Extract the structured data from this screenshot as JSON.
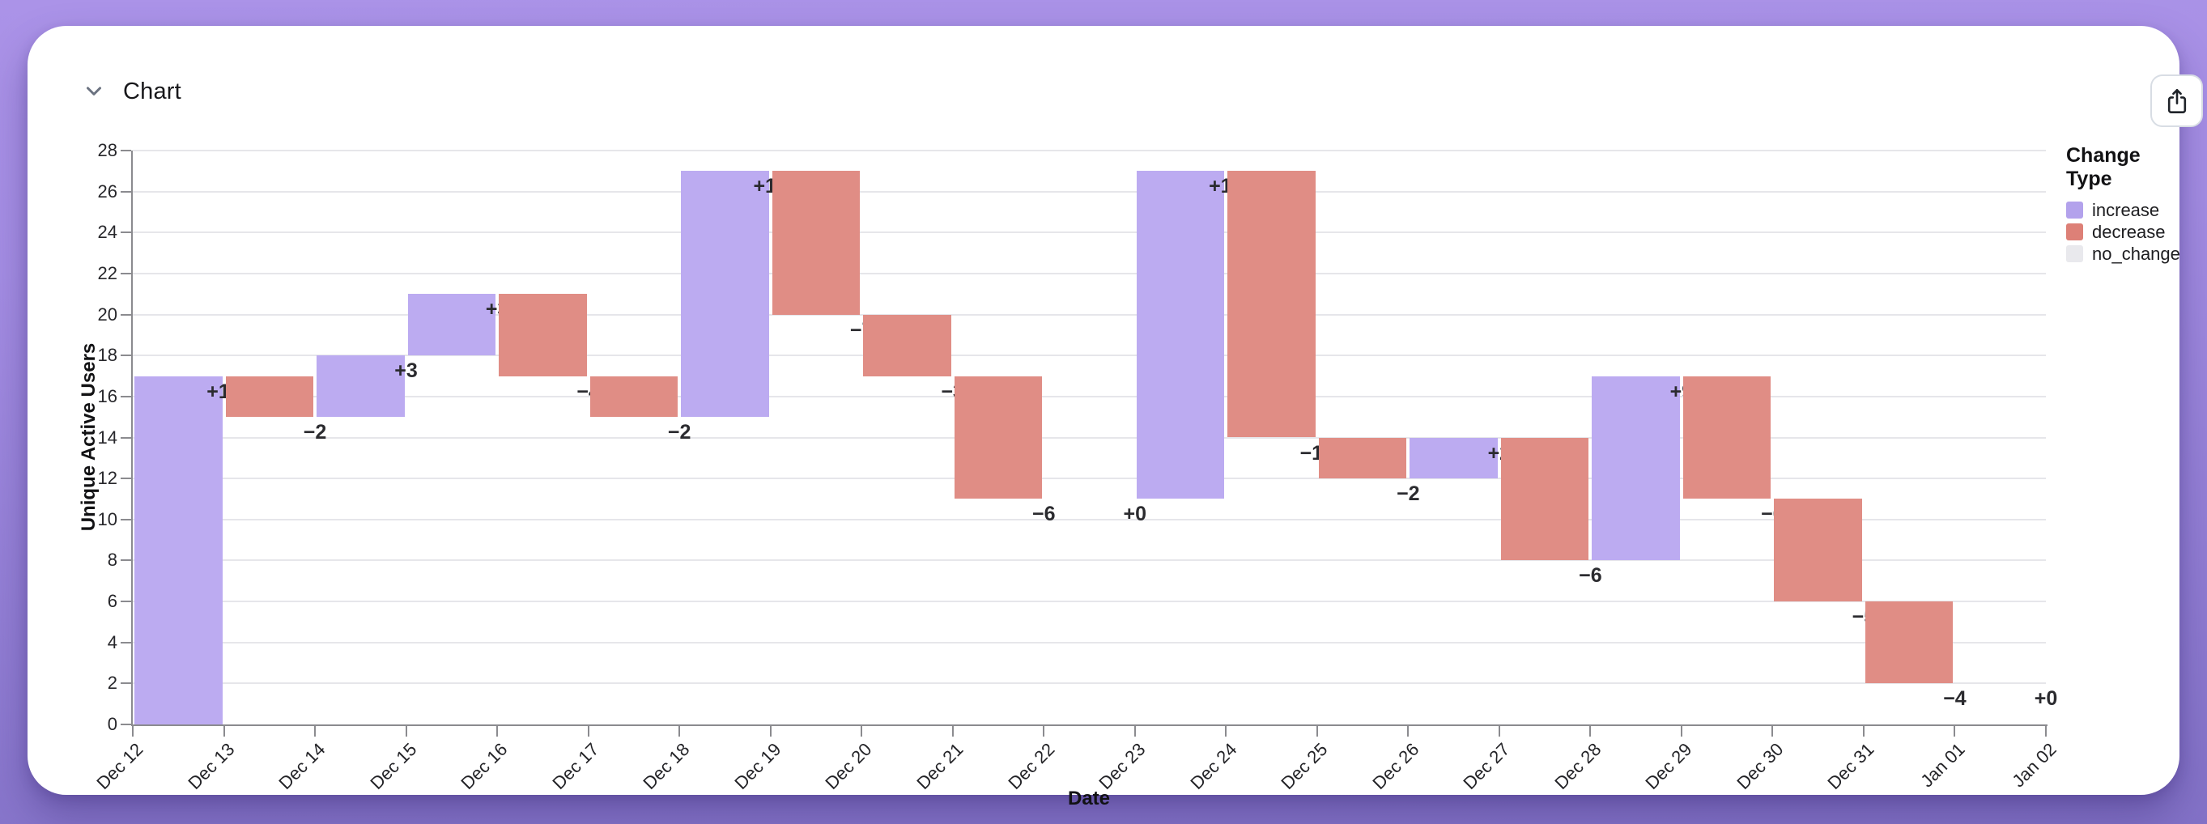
{
  "header": {
    "title": "Chart",
    "collapse_icon": "chevron-down-icon",
    "share_icon": "share-icon"
  },
  "chart_data": {
    "type": "bar",
    "variant": "waterfall",
    "xlabel": "Date",
    "ylabel": "Unique Active Users",
    "ylim": [
      0,
      28
    ],
    "yticks": [
      0,
      2,
      4,
      6,
      8,
      10,
      12,
      14,
      16,
      18,
      20,
      22,
      24,
      26,
      28
    ],
    "grid": true,
    "legend_position": "top-right",
    "legend": {
      "title": "Change Type",
      "entries": [
        {
          "label": "increase",
          "color": "#b3a2ec"
        },
        {
          "label": "decrease",
          "color": "#dd8077"
        },
        {
          "label": "no_change",
          "color": "#e9e9ed"
        }
      ]
    },
    "colors": {
      "increase": "#bcabf1",
      "decrease": "#e08d85",
      "no_change": "#e9e9ed"
    },
    "x_ticklabels": [
      "Dec 12",
      "Dec 13",
      "Dec 14",
      "Dec 15",
      "Dec 16",
      "Dec 17",
      "Dec 18",
      "Dec 19",
      "Dec 20",
      "Dec 21",
      "Dec 22",
      "Dec 23",
      "Dec 24",
      "Dec 25",
      "Dec 26",
      "Dec 27",
      "Dec 28",
      "Dec 29",
      "Dec 30",
      "Dec 31",
      "Jan 01",
      "Jan 02"
    ],
    "bars": [
      {
        "date": "Dec 12",
        "change": 17,
        "type": "increase",
        "label": "+17",
        "start": 0,
        "end": 17
      },
      {
        "date": "Dec 13",
        "change": -2,
        "type": "decrease",
        "label": "−2",
        "start": 17,
        "end": 15
      },
      {
        "date": "Dec 14",
        "change": 3,
        "type": "increase",
        "label": "+3",
        "start": 15,
        "end": 18
      },
      {
        "date": "Dec 15",
        "change": 3,
        "type": "increase",
        "label": "+3",
        "start": 18,
        "end": 21
      },
      {
        "date": "Dec 16",
        "change": -4,
        "type": "decrease",
        "label": "−4",
        "start": 21,
        "end": 17
      },
      {
        "date": "Dec 17",
        "change": -2,
        "type": "decrease",
        "label": "−2",
        "start": 17,
        "end": 15
      },
      {
        "date": "Dec 18",
        "change": 12,
        "type": "increase",
        "label": "+12",
        "start": 15,
        "end": 27
      },
      {
        "date": "Dec 19",
        "change": -7,
        "type": "decrease",
        "label": "−7",
        "start": 27,
        "end": 20
      },
      {
        "date": "Dec 20",
        "change": -3,
        "type": "decrease",
        "label": "−3",
        "start": 20,
        "end": 17
      },
      {
        "date": "Dec 21",
        "change": -6,
        "type": "decrease",
        "label": "−6",
        "start": 17,
        "end": 11
      },
      {
        "date": "Dec 22",
        "change": 0,
        "type": "no_change",
        "label": "+0",
        "start": 11,
        "end": 11
      },
      {
        "date": "Dec 23",
        "change": 16,
        "type": "increase",
        "label": "+16",
        "start": 11,
        "end": 27
      },
      {
        "date": "Dec 24",
        "change": -13,
        "type": "decrease",
        "label": "−13",
        "start": 27,
        "end": 14
      },
      {
        "date": "Dec 25",
        "change": -2,
        "type": "decrease",
        "label": "−2",
        "start": 14,
        "end": 12
      },
      {
        "date": "Dec 26",
        "change": 2,
        "type": "increase",
        "label": "+2",
        "start": 12,
        "end": 14
      },
      {
        "date": "Dec 27",
        "change": -6,
        "type": "decrease",
        "label": "−6",
        "start": 14,
        "end": 8
      },
      {
        "date": "Dec 28",
        "change": 9,
        "type": "increase",
        "label": "+9",
        "start": 8,
        "end": 17
      },
      {
        "date": "Dec 29",
        "change": -6,
        "type": "decrease",
        "label": "−6",
        "start": 17,
        "end": 11
      },
      {
        "date": "Dec 30",
        "change": -5,
        "type": "decrease",
        "label": "−5",
        "start": 11,
        "end": 6
      },
      {
        "date": "Dec 31",
        "change": -4,
        "type": "decrease",
        "label": "−4",
        "start": 6,
        "end": 2
      },
      {
        "date": "Jan 01",
        "change": 0,
        "type": "no_change",
        "label": "+0",
        "start": 2,
        "end": 2
      }
    ]
  }
}
